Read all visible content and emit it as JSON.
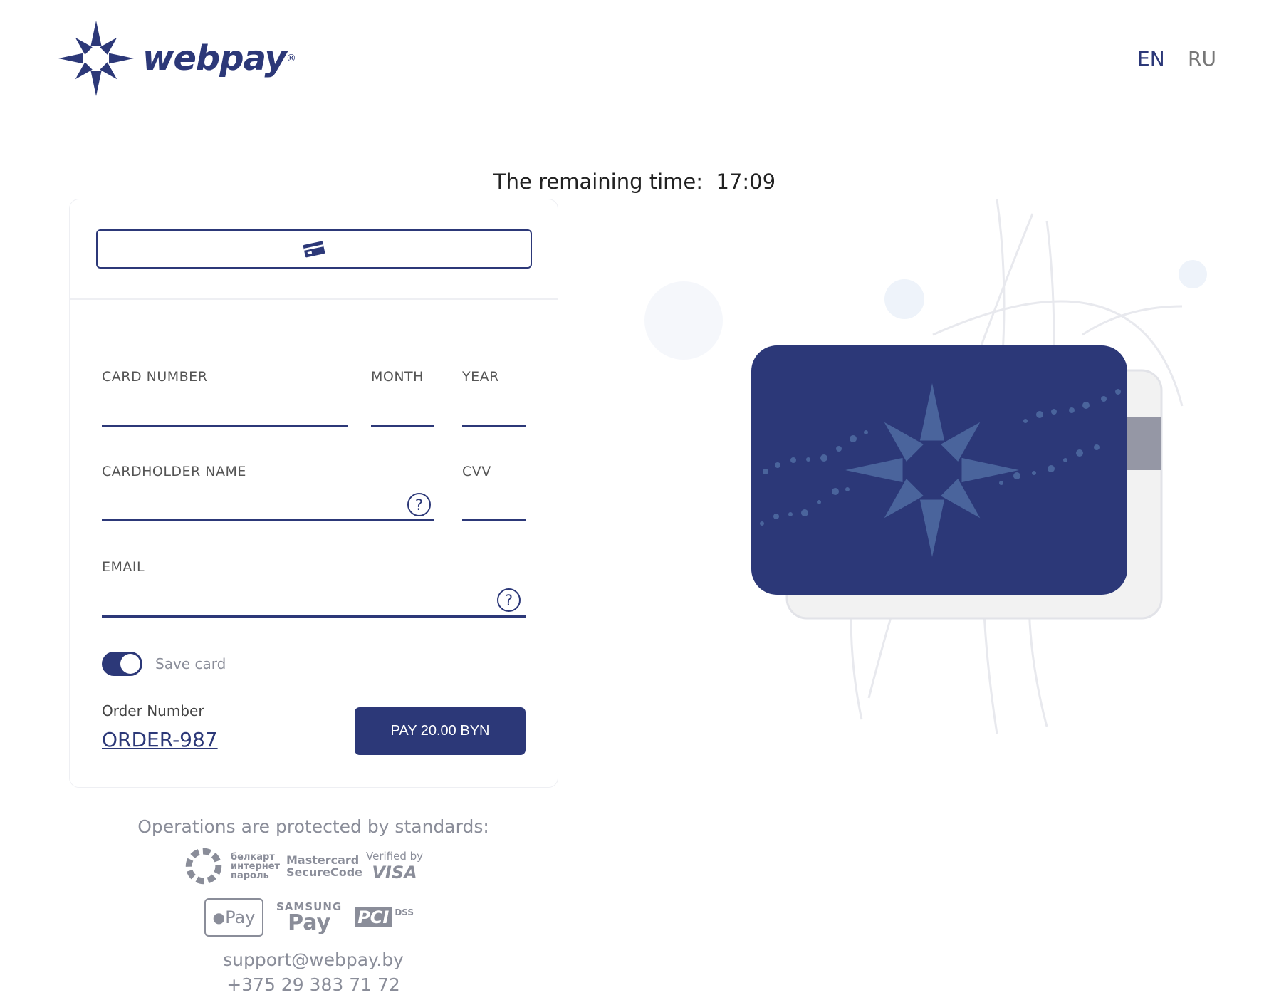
{
  "header": {
    "logo_text": "webpay",
    "logo_mark": "®",
    "languages": [
      {
        "label": "EN",
        "active": true
      },
      {
        "label": "RU",
        "active": false
      }
    ]
  },
  "timer": {
    "label": "The remaining time:",
    "value": "17:09"
  },
  "form": {
    "tab_icon": "credit-card-icon",
    "card_number_label": "CARD NUMBER",
    "month_label": "MONTH",
    "year_label": "YEAR",
    "cardholder_label": "CARDHOLDER NAME",
    "cvv_label": "CVV",
    "email_label": "EMAIL",
    "help_glyph": "?",
    "save_card_label": "Save card",
    "save_card_on": true,
    "order_number_label": "Order Number",
    "order_number": "ORDER-987",
    "pay_button": "PAY 20.00 BYN"
  },
  "footer": {
    "protected_text": "Operations are protected by standards:",
    "badges": {
      "belkart": "белкарт интернет пароль",
      "mastercard": "Mastercard SecureCode",
      "visa_top": "Verified by",
      "visa": "VISA",
      "applepay": "Pay",
      "samsung_top": "SAMSUNG",
      "samsung_pay": "Pay",
      "pci": "PCI",
      "pci_dss": "DSS"
    },
    "email": "support@webpay.by",
    "phone": "+375 29 383 71 72"
  },
  "colors": {
    "brand": "#2c3878",
    "muted": "#8a8d99"
  }
}
